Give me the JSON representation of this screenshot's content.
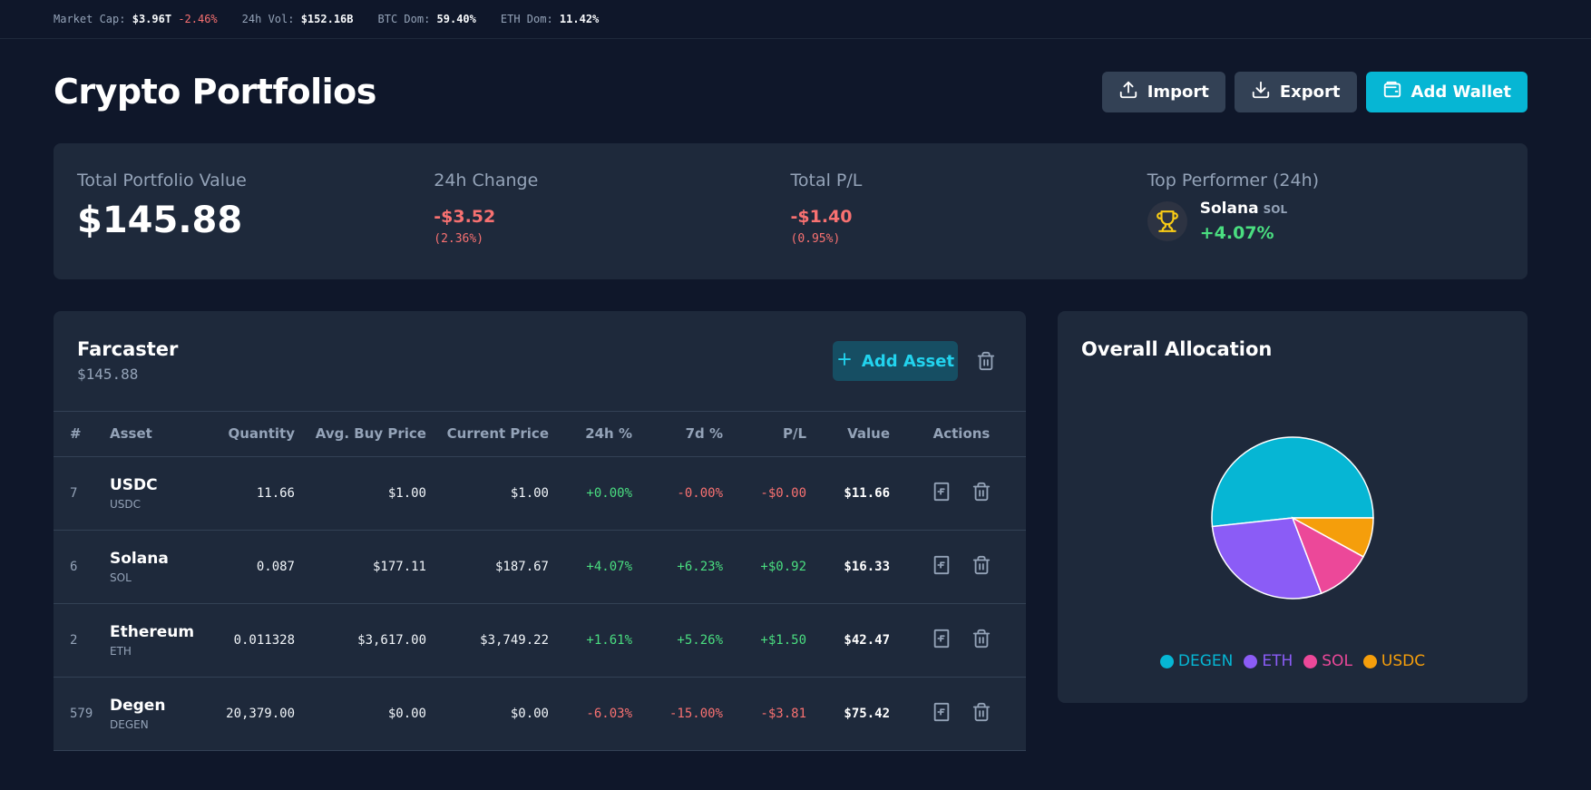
{
  "ticker": {
    "market_cap_label": "Market Cap:",
    "market_cap_value": "$3.96T",
    "market_cap_change": "-2.46%",
    "vol_label": "24h Vol:",
    "vol_value": "$152.16B",
    "btc_dom_label": "BTC Dom:",
    "btc_dom_value": "59.40%",
    "eth_dom_label": "ETH Dom:",
    "eth_dom_value": "11.42%"
  },
  "header": {
    "title": "Crypto Portfolios",
    "import_label": "Import",
    "export_label": "Export",
    "add_wallet_label": "Add Wallet"
  },
  "summary": {
    "total_label": "Total Portfolio Value",
    "total_value": "$145.88",
    "change_label": "24h Change",
    "change_value": "-$3.52",
    "change_pct": "(2.36%)",
    "pl_label": "Total P/L",
    "pl_value": "-$1.40",
    "pl_pct": "(0.95%)",
    "top_label": "Top Performer (24h)",
    "top_name": "Solana",
    "top_symbol": "SOL",
    "top_pct": "+4.07%"
  },
  "portfolio": {
    "name": "Farcaster",
    "total": "$145.88",
    "add_asset_label": "Add Asset",
    "columns": [
      "#",
      "Asset",
      "Quantity",
      "Avg. Buy Price",
      "Current Price",
      "24h %",
      "7d %",
      "P/L",
      "Value",
      "Actions"
    ],
    "rows": [
      {
        "rank": "7",
        "name": "USDC",
        "symbol": "USDC",
        "quantity": "11.66",
        "avg_buy": "$1.00",
        "current": "$1.00",
        "pct24": "+0.00%",
        "pct24_dir": "pos",
        "pct7": "-0.00%",
        "pct7_dir": "neg",
        "pl": "-$0.00",
        "pl_dir": "neg",
        "value": "$11.66"
      },
      {
        "rank": "6",
        "name": "Solana",
        "symbol": "SOL",
        "quantity": "0.087",
        "avg_buy": "$177.11",
        "current": "$187.67",
        "pct24": "+4.07%",
        "pct24_dir": "pos",
        "pct7": "+6.23%",
        "pct7_dir": "pos",
        "pl": "+$0.92",
        "pl_dir": "pos",
        "value": "$16.33"
      },
      {
        "rank": "2",
        "name": "Ethereum",
        "symbol": "ETH",
        "quantity": "0.011328",
        "avg_buy": "$3,617.00",
        "current": "$3,749.22",
        "pct24": "+1.61%",
        "pct24_dir": "pos",
        "pct7": "+5.26%",
        "pct7_dir": "pos",
        "pl": "+$1.50",
        "pl_dir": "pos",
        "value": "$42.47"
      },
      {
        "rank": "579",
        "name": "Degen",
        "symbol": "DEGEN",
        "quantity": "20,379.00",
        "avg_buy": "$0.00",
        "current": "$0.00",
        "pct24": "-6.03%",
        "pct24_dir": "neg",
        "pct7": "-15.00%",
        "pct7_dir": "neg",
        "pl": "-$3.81",
        "pl_dir": "neg",
        "value": "$75.42"
      }
    ]
  },
  "allocation": {
    "title": "Overall Allocation",
    "slices": [
      {
        "label": "DEGEN",
        "value": 75.42,
        "color": "#06b6d4"
      },
      {
        "label": "ETH",
        "value": 42.47,
        "color": "#8b5cf6"
      },
      {
        "label": "SOL",
        "value": 16.33,
        "color": "#ec4899"
      },
      {
        "label": "USDC",
        "value": 11.66,
        "color": "#f59e0b"
      }
    ]
  },
  "colors": {
    "accent": "#06b6d4",
    "positive": "#4ade80",
    "negative": "#f87171",
    "background": "#0f172a",
    "card": "#1e293b"
  }
}
